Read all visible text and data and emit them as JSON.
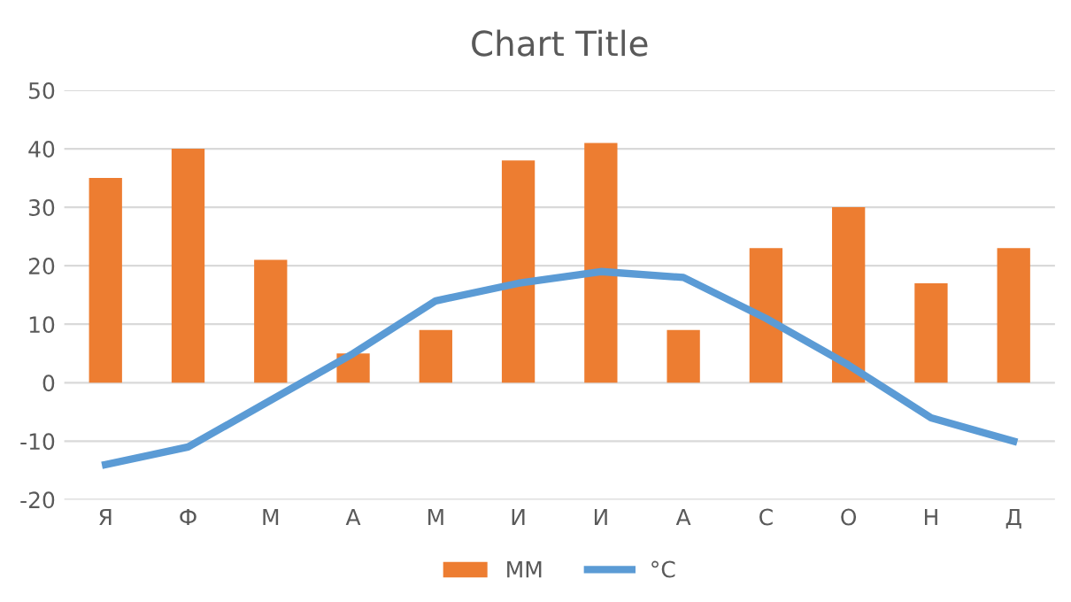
{
  "chart_data": {
    "type": "bar",
    "title": "Chart Title",
    "categories": [
      "Я",
      "Ф",
      "М",
      "А",
      "М",
      "И",
      "И",
      "А",
      "С",
      "О",
      "Н",
      "Д"
    ],
    "series": [
      {
        "name": "ММ",
        "color": "#ed7d31",
        "values": [
          35,
          40,
          21,
          5,
          9,
          38,
          41,
          9,
          23,
          30,
          17,
          23
        ]
      },
      {
        "name": "°C",
        "type": "line",
        "color": "#5b9bd5",
        "values": [
          -14,
          -11,
          -3,
          5,
          14,
          17,
          19,
          18,
          11,
          3,
          -6,
          -10
        ]
      }
    ],
    "ylim": [
      -20,
      50
    ],
    "yticks": [
      -20,
      -10,
      0,
      10,
      20,
      30,
      40,
      50
    ],
    "grid": "y",
    "legend": "bottom",
    "marker": "none",
    "line_style": "solid"
  }
}
